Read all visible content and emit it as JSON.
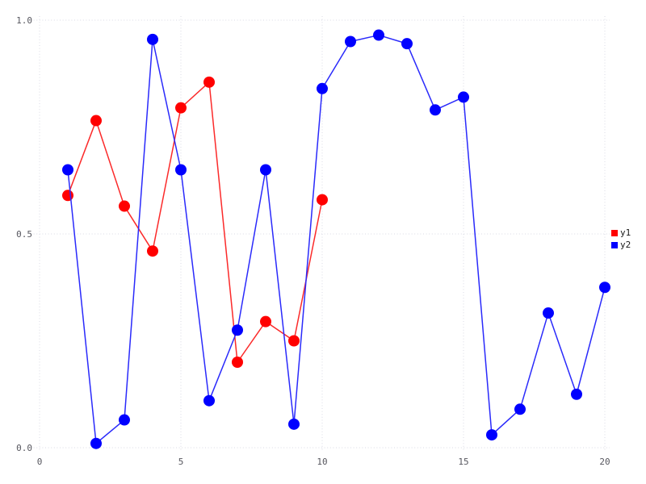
{
  "chart_data": {
    "type": "line",
    "title": "",
    "xlabel": "",
    "ylabel": "",
    "xlim": [
      0,
      20
    ],
    "ylim": [
      0.0,
      1.0
    ],
    "x_ticks": [
      0,
      5,
      10,
      15,
      20
    ],
    "x_tick_labels": [
      "0",
      "5",
      "10",
      "15",
      "20"
    ],
    "y_ticks": [
      0.0,
      0.5,
      1.0
    ],
    "y_tick_labels": [
      "0.0",
      "0.5",
      "1.0"
    ],
    "grid": "dotted",
    "grid_color": "#d9dae4",
    "tick_label_color": "#56565e",
    "legend_position": "outside-center-right",
    "series": [
      {
        "name": "y1",
        "color": "#ff0000",
        "line_color": "#fb2a2a",
        "marker": "circle",
        "x": [
          1,
          2,
          3,
          4,
          5,
          6,
          7,
          8,
          9,
          10
        ],
        "y": [
          0.59,
          0.765,
          0.565,
          0.46,
          0.795,
          0.855,
          0.2,
          0.295,
          0.25,
          0.58
        ]
      },
      {
        "name": "y2",
        "color": "#0000ff",
        "line_color": "#2a2afb",
        "marker": "circle",
        "x": [
          1,
          2,
          3,
          4,
          5,
          6,
          7,
          8,
          9,
          10,
          11,
          12,
          13,
          14,
          15,
          16,
          17,
          18,
          19,
          20
        ],
        "y": [
          0.65,
          0.01,
          0.065,
          0.955,
          0.65,
          0.11,
          0.275,
          0.65,
          0.055,
          0.84,
          0.95,
          0.965,
          0.945,
          0.79,
          0.82,
          0.03,
          0.09,
          0.315,
          0.125,
          0.375
        ]
      }
    ]
  },
  "legend": {
    "items": [
      {
        "label": "y1",
        "swatch": "red-square"
      },
      {
        "label": "y2",
        "swatch": "blue-square"
      }
    ]
  }
}
